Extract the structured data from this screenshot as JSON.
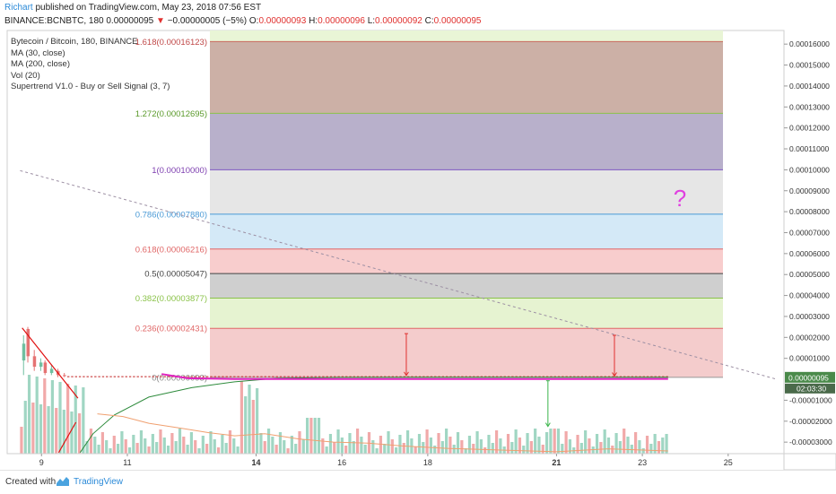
{
  "header": {
    "author": "Richart",
    "published_text": "published on TradingView.com, May 23, 2018 07:56 EST",
    "symbol_line": "BINANCE:BCNBTC, 180",
    "last_price": "0.00000095",
    "change_text": "−0.00000005 (−5%)",
    "ohlc": [
      {
        "label": "O:",
        "value": "0.00000093"
      },
      {
        "label": "H:",
        "value": "0.00000096"
      },
      {
        "label": "L:",
        "value": "0.00000092"
      },
      {
        "label": "C:",
        "value": "0.00000095"
      }
    ]
  },
  "legend": [
    "Bytecoin / Bitcoin, 180, BINANCE",
    "MA (30, close)",
    "MA (200, close)",
    "Vol (20)",
    "Supertrend V1.0 - Buy or Sell Signal (3, 7)"
  ],
  "colors": {
    "fib_0": "#f4cccc",
    "fib_0236": "#f4cccc",
    "fib_0382": "#e6f3d1",
    "fib_05": "#cfcfcf",
    "fib_0618": "#f8cdcd",
    "fib_0786": "#d4e9f7",
    "fib_1": "#e6e6e6",
    "fib_1272": "#b8b0cb",
    "fib_1618": "#ccb0a6",
    "fib_top": "#e9f5d6",
    "up_candle": "#8fcfb8",
    "down_candle": "#ef9a9a",
    "ma30": "#f0a070",
    "ma200": "#2e8b3c",
    "supertrend": "#e020c0",
    "question_mark": "#e040e0"
  },
  "chart_data": {
    "type": "candlestick",
    "fib_levels": [
      {
        "ratio": "0",
        "label": "0(0.00000093)",
        "value": 9.3e-07
      },
      {
        "ratio": "0.236",
        "label": "0.236(0.00002431)",
        "value": 2.431e-05
      },
      {
        "ratio": "0.382",
        "label": "0.382(0.00003877)",
        "value": 3.877e-05
      },
      {
        "ratio": "0.5",
        "label": "0.5(0.00005047)",
        "value": 5.047e-05
      },
      {
        "ratio": "0.618",
        "label": "0.618(0.00006216)",
        "value": 6.216e-05
      },
      {
        "ratio": "0.786",
        "label": "0.786(0.00007880)",
        "value": 7.88e-05
      },
      {
        "ratio": "1",
        "label": "1(0.00010000)",
        "value": 0.0001
      },
      {
        "ratio": "1.272",
        "label": "1.272(0.00012695)",
        "value": 0.00012695
      },
      {
        "ratio": "1.618",
        "label": "1.618(0.00016123)",
        "value": 0.00016123
      }
    ],
    "y_ticks": [
      "0.00016000",
      "0.00015000",
      "0.00014000",
      "0.00013000",
      "0.00012000",
      "0.00011000",
      "0.00010000",
      "0.00009000",
      "0.00008000",
      "0.00007000",
      "0.00006000",
      "0.00005000",
      "0.00004000",
      "0.00003000",
      "0.00002000",
      "0.00001000",
      "-0.00001000",
      "-0.00002000",
      "-0.00003000"
    ],
    "y_tick_values": [
      0.00016,
      0.00015,
      0.00014,
      0.00013,
      0.00012,
      0.00011,
      0.0001,
      9e-05,
      8e-05,
      7e-05,
      6e-05,
      5e-05,
      4e-05,
      3e-05,
      2e-05,
      1e-05,
      -1e-05,
      -2e-05,
      -3e-05
    ],
    "x_ticks": [
      "9",
      "11",
      "14",
      "16",
      "18",
      "21",
      "23",
      "25"
    ],
    "x_tick_days": [
      9,
      11,
      14,
      16,
      18,
      21,
      23,
      25
    ],
    "price_label": "0.00000095",
    "countdown_label": "02:03:30",
    "annotation": "?",
    "price_range": [
      -3.55e-05,
      0.0001665
    ],
    "date_range": [
      8.2,
      26.3
    ],
    "last_bar_day": 23.6,
    "candles": [
      {
        "day": 8.55,
        "open": 9e-06,
        "close": 1.7e-05,
        "high": 2.1e-05,
        "low": 2e-06
      },
      {
        "day": 8.65,
        "open": 2.4e-05,
        "close": 1.1e-05,
        "high": 2.5e-05,
        "low": 8e-06
      },
      {
        "day": 8.8,
        "open": 1.1e-05,
        "close": 6e-06,
        "high": 1.4e-05,
        "low": 4e-06
      },
      {
        "day": 8.95,
        "open": 6e-06,
        "close": 8e-06,
        "high": 1e-05,
        "low": 4e-06
      },
      {
        "day": 9.05,
        "open": 8e-06,
        "close": 3e-06,
        "high": 9e-06,
        "low": 2e-06
      },
      {
        "day": 9.2,
        "open": 3e-06,
        "close": 5e-06,
        "high": 7e-06,
        "low": 2e-06
      },
      {
        "day": 9.35,
        "open": 4e-06,
        "close": 2e-06,
        "high": 5e-06,
        "low": 1e-06
      },
      {
        "day": 9.5,
        "open": 2e-06,
        "close": 1.5e-06,
        "high": 3e-06,
        "low": 1e-06
      }
    ],
    "trend_line": [
      {
        "day": 8.55,
        "price": 2.45e-05
      },
      {
        "day": 9.85,
        "price": -9e-06
      }
    ],
    "trend_line_2": [
      {
        "day": 9.4,
        "price": -3.5e-05
      },
      {
        "day": 9.8,
        "price": -2.05e-05
      }
    ],
    "ma200": [
      {
        "day": 9.9,
        "price": -3.5e-05
      },
      {
        "day": 10.2,
        "price": -2.6e-05
      },
      {
        "day": 10.7,
        "price": -1.7e-05
      },
      {
        "day": 11.5,
        "price": -8.5e-06
      },
      {
        "day": 12.5,
        "price": -4e-06
      },
      {
        "day": 13.5,
        "price": -1.2e-06
      },
      {
        "day": 14.5,
        "price": 5e-07
      },
      {
        "day": 16,
        "price": 9e-07
      },
      {
        "day": 18,
        "price": 1e-06
      },
      {
        "day": 21,
        "price": 1e-06
      },
      {
        "day": 23.6,
        "price": 1e-06
      }
    ],
    "ma30": [
      {
        "day": 10.3,
        "price": -1.65e-05
      },
      {
        "day": 10.9,
        "price": -1.78e-05
      },
      {
        "day": 11.5,
        "price": -2.1e-05
      },
      {
        "day": 12.3,
        "price": -2.35e-05
      },
      {
        "day": 12.9,
        "price": -2.55e-05
      },
      {
        "day": 13.5,
        "price": -2.7e-05
      },
      {
        "day": 14.2,
        "price": -2.6e-05
      },
      {
        "day": 15,
        "price": -2.85e-05
      },
      {
        "day": 15.8,
        "price": -3e-05
      },
      {
        "day": 16.6,
        "price": -3.05e-05
      },
      {
        "day": 17.4,
        "price": -3.18e-05
      },
      {
        "day": 18.5,
        "price": -3.3e-05
      },
      {
        "day": 19.7,
        "price": -3.38e-05
      },
      {
        "day": 21,
        "price": -3.46e-05
      },
      {
        "day": 22.2,
        "price": -3.32e-05
      },
      {
        "day": 23.6,
        "price": -3.42e-05
      }
    ],
    "supertrend": [
      {
        "day": 11.8,
        "price": 2.5e-06
      },
      {
        "day": 12.4,
        "price": 5e-07
      },
      {
        "day": 13.5,
        "price": 1e-07
      },
      {
        "day": 21,
        "price": 1e-07
      },
      {
        "day": 23.6,
        "price": 2e-07
      }
    ],
    "dashed_line": [
      {
        "day": 8.5,
        "price": 9.96e-05
      },
      {
        "day": 26.1,
        "price": 2e-07
      }
    ],
    "signals": [
      {
        "day": 17.5,
        "top": 2.18e-05,
        "bottom": 1.8e-06,
        "color": "#e0312f"
      },
      {
        "day": 22.35,
        "top": 2.1e-05,
        "bottom": 1.5e-06,
        "color": "#e0312f"
      },
      {
        "day": 20.8,
        "top": -7e-07,
        "bottom": -2.25e-05,
        "color": "#3ab54a"
      }
    ]
  }
}
